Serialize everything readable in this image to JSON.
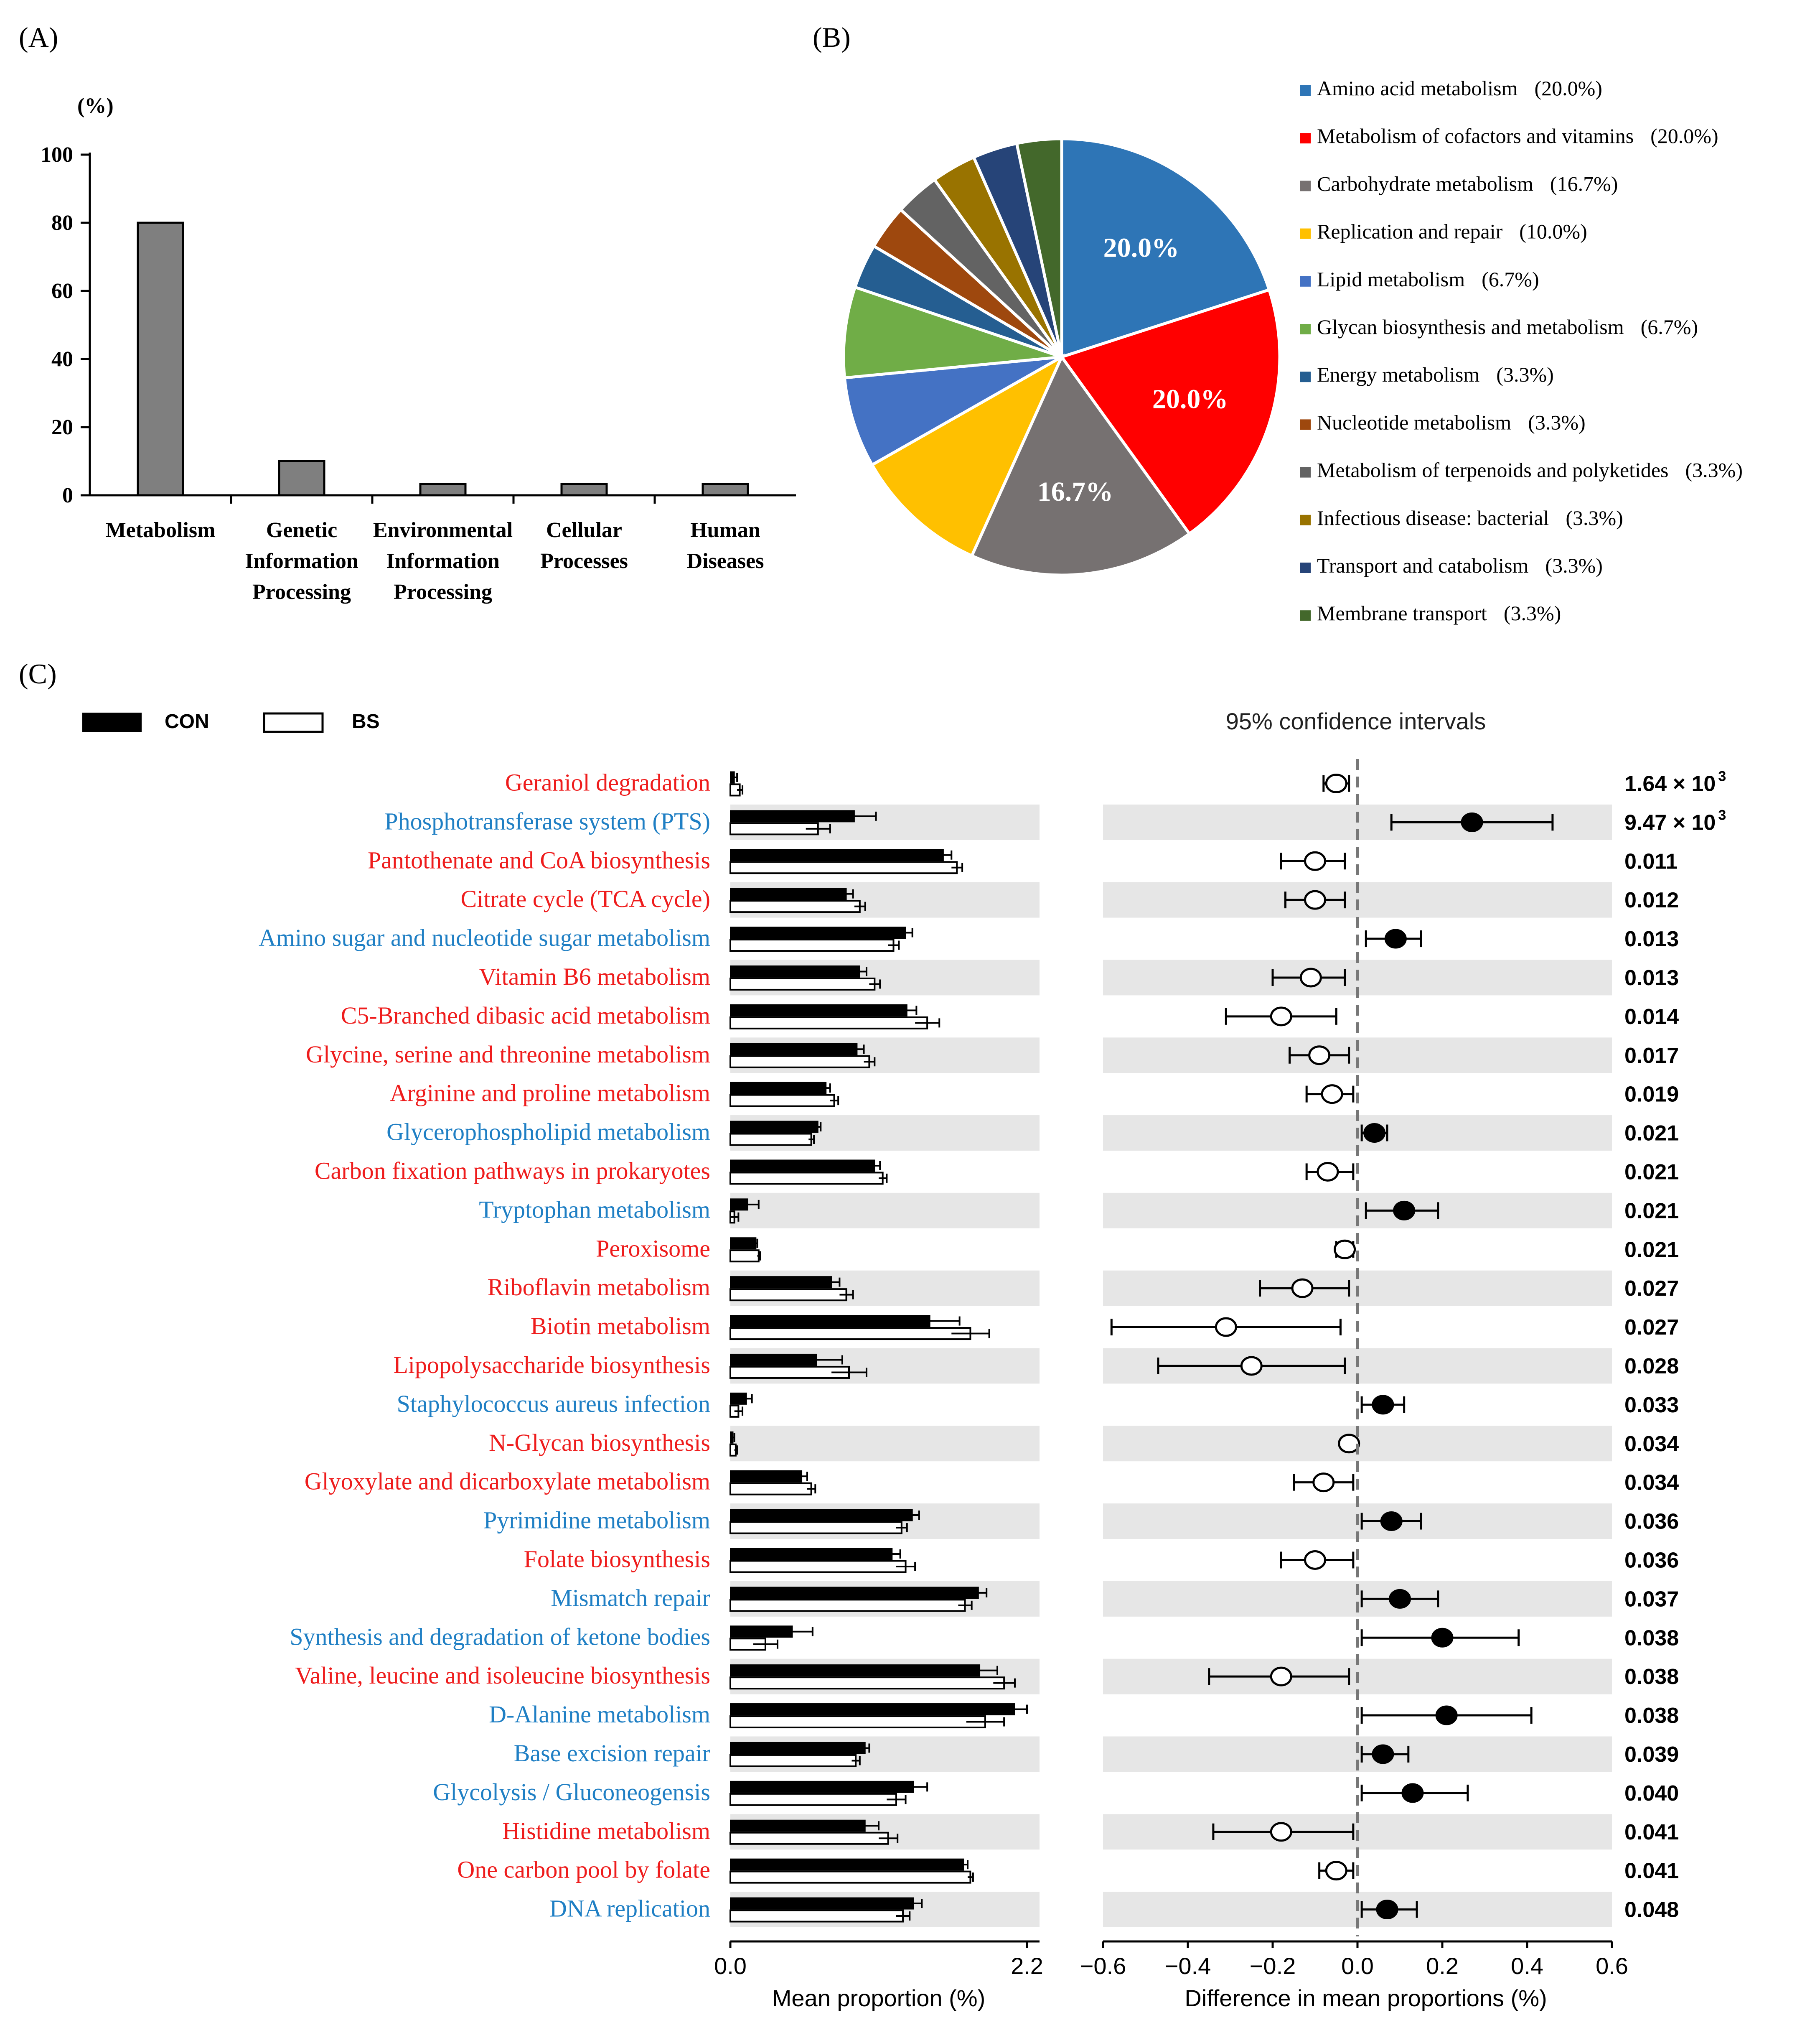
{
  "panels": {
    "a_label": "(A)",
    "b_label": "(B)",
    "c_label": "(C)"
  },
  "chart_data": [
    {
      "type": "bar",
      "panel": "A",
      "ylabel": "(%)",
      "ylim": [
        0,
        100
      ],
      "yticks": [
        "100",
        "80",
        "60",
        "40",
        "20",
        "0"
      ],
      "categories": [
        [
          "Metabolism"
        ],
        [
          "Genetic",
          "Information",
          "Processing"
        ],
        [
          "Environmental",
          "Information",
          "Processing"
        ],
        [
          "Cellular",
          "Processes"
        ],
        [
          "Human",
          "Diseases"
        ]
      ],
      "values": [
        80.0,
        10.0,
        3.3,
        3.3,
        3.3
      ],
      "bar_color": "#7f7f7f"
    },
    {
      "type": "pie",
      "panel": "B",
      "legend": "right",
      "slices": [
        {
          "label": "Amino acid metabolism",
          "pct": "(20.0%)",
          "value": 20.0,
          "color": "#2e75b6",
          "inside": "20.0%"
        },
        {
          "label": "Metabolism of cofactors and vitamins",
          "pct": "(20.0%)",
          "value": 20.0,
          "color": "#ff0000",
          "inside": "20.0%"
        },
        {
          "label": "Carbohydrate metabolism",
          "pct": "(16.7%)",
          "value": 16.7,
          "color": "#767171",
          "inside": "16.7%"
        },
        {
          "label": "Replication and repair",
          "pct": "(10.0%)",
          "value": 10.0,
          "color": "#ffc000",
          "inside": ""
        },
        {
          "label": "Lipid metabolism",
          "pct": "(6.7%)",
          "value": 6.7,
          "color": "#4472c4",
          "inside": ""
        },
        {
          "label": "Glycan biosynthesis and metabolism",
          "pct": "(6.7%)",
          "value": 6.7,
          "color": "#70ad47",
          "inside": ""
        },
        {
          "label": "Energy metabolism",
          "pct": "(3.3%)",
          "value": 3.3,
          "color": "#255e91",
          "inside": ""
        },
        {
          "label": "Nucleotide metabolism",
          "pct": "(3.3%)",
          "value": 3.3,
          "color": "#9e480e",
          "inside": ""
        },
        {
          "label": "Metabolism of terpenoids and polyketides",
          "pct": "(3.3%)",
          "value": 3.3,
          "color": "#636363",
          "inside": ""
        },
        {
          "label": "Infectious disease: bacterial",
          "pct": "(3.3%)",
          "value": 3.3,
          "color": "#997300",
          "inside": ""
        },
        {
          "label": "Transport and catabolism",
          "pct": "(3.3%)",
          "value": 3.3,
          "color": "#264478",
          "inside": ""
        },
        {
          "label": "Membrane transport",
          "pct": "(3.3%)",
          "value": 3.3,
          "color": "#43682b",
          "inside": ""
        }
      ]
    },
    {
      "type": "extended-error-bar",
      "panel": "C",
      "legend": {
        "con": "CON",
        "bs": "BS"
      },
      "ci_title": "95% confidence intervals",
      "left_xlabel": "Mean proportion (%)",
      "left_xlim": [
        0,
        2.2
      ],
      "left_ticks": [
        {
          "v": 0,
          "t": "0.0"
        },
        {
          "v": 2.2,
          "t": "2.2"
        }
      ],
      "right_xlabel": "Difference in mean proportions (%)",
      "right_xlim": [
        -0.6,
        0.6
      ],
      "right_ticks": [
        {
          "v": -0.6,
          "t": "−0.6"
        },
        {
          "v": -0.4,
          "t": "−0.4"
        },
        {
          "v": -0.2,
          "t": "−0.2"
        },
        {
          "v": 0,
          "t": "0.0"
        },
        {
          "v": 0.2,
          "t": "0.2"
        },
        {
          "v": 0.4,
          "t": "0.4"
        },
        {
          "v": 0.6,
          "t": "0.6"
        }
      ],
      "colors": {
        "red": "#ee1c1c",
        "blue": "#1f7fc4",
        "shade": "#e6e6e6"
      },
      "rows": [
        {
          "name": "Geraniol degradation",
          "color": "red",
          "con": 0.03,
          "con_e": 0.02,
          "bs": 0.07,
          "bs_e": 0.02,
          "diff": -0.05,
          "lo": -0.08,
          "hi": -0.02,
          "p": "1.64 × 10",
          "sup": "3"
        },
        {
          "name": "Phosphotransferase system (PTS)",
          "color": "blue",
          "con": 0.92,
          "con_e": 0.16,
          "bs": 0.65,
          "bs_e": 0.09,
          "diff": 0.27,
          "lo": 0.08,
          "hi": 0.46,
          "p": "9.47 × 10",
          "sup": "3"
        },
        {
          "name": "Pantothenate and CoA biosynthesis",
          "color": "red",
          "con": 1.58,
          "con_e": 0.06,
          "bs": 1.68,
          "bs_e": 0.04,
          "diff": -0.1,
          "lo": -0.18,
          "hi": -0.03,
          "p": "0.011",
          "sup": ""
        },
        {
          "name": "Citrate cycle (TCA cycle)",
          "color": "red",
          "con": 0.86,
          "con_e": 0.05,
          "bs": 0.96,
          "bs_e": 0.04,
          "diff": -0.1,
          "lo": -0.17,
          "hi": -0.03,
          "p": "0.012",
          "sup": ""
        },
        {
          "name": "Amino sugar and nucleotide sugar metabolism",
          "color": "blue",
          "con": 1.3,
          "con_e": 0.05,
          "bs": 1.21,
          "bs_e": 0.04,
          "diff": 0.09,
          "lo": 0.02,
          "hi": 0.15,
          "p": "0.013",
          "sup": ""
        },
        {
          "name": "Vitamin B6 metabolism",
          "color": "red",
          "con": 0.96,
          "con_e": 0.05,
          "bs": 1.07,
          "bs_e": 0.04,
          "diff": -0.11,
          "lo": -0.2,
          "hi": -0.03,
          "p": "0.013",
          "sup": ""
        },
        {
          "name": "C5-Branched dibasic acid metabolism",
          "color": "red",
          "con": 1.31,
          "con_e": 0.07,
          "bs": 1.46,
          "bs_e": 0.09,
          "diff": -0.18,
          "lo": -0.31,
          "hi": -0.05,
          "p": "0.014",
          "sup": ""
        },
        {
          "name": "Glycine, serine and threonine metabolism",
          "color": "red",
          "con": 0.94,
          "con_e": 0.05,
          "bs": 1.03,
          "bs_e": 0.04,
          "diff": -0.09,
          "lo": -0.16,
          "hi": -0.02,
          "p": "0.017",
          "sup": ""
        },
        {
          "name": "Arginine and proline metabolism",
          "color": "red",
          "con": 0.71,
          "con_e": 0.03,
          "bs": 0.77,
          "bs_e": 0.03,
          "diff": -0.06,
          "lo": -0.12,
          "hi": -0.01,
          "p": "0.019",
          "sup": ""
        },
        {
          "name": "Glycerophospholipid metabolism",
          "color": "blue",
          "con": 0.65,
          "con_e": 0.02,
          "bs": 0.6,
          "bs_e": 0.02,
          "diff": 0.04,
          "lo": 0.01,
          "hi": 0.07,
          "p": "0.021",
          "sup": ""
        },
        {
          "name": "Carbon fixation pathways in prokaryotes",
          "color": "red",
          "con": 1.07,
          "con_e": 0.04,
          "bs": 1.13,
          "bs_e": 0.03,
          "diff": -0.07,
          "lo": -0.12,
          "hi": -0.01,
          "p": "0.021",
          "sup": ""
        },
        {
          "name": "Tryptophan metabolism",
          "color": "blue",
          "con": 0.13,
          "con_e": 0.08,
          "bs": 0.03,
          "bs_e": 0.03,
          "diff": 0.11,
          "lo": 0.02,
          "hi": 0.19,
          "p": "0.021",
          "sup": ""
        },
        {
          "name": "Peroxisome",
          "color": "red",
          "con": 0.19,
          "con_e": 0.01,
          "bs": 0.21,
          "bs_e": 0.01,
          "diff": -0.03,
          "lo": -0.05,
          "hi": -0.01,
          "p": "0.021",
          "sup": ""
        },
        {
          "name": "Riboflavin metabolism",
          "color": "red",
          "con": 0.75,
          "con_e": 0.06,
          "bs": 0.86,
          "bs_e": 0.05,
          "diff": -0.13,
          "lo": -0.23,
          "hi": -0.02,
          "p": "0.027",
          "sup": ""
        },
        {
          "name": "Biotin metabolism",
          "color": "red",
          "con": 1.48,
          "con_e": 0.22,
          "bs": 1.78,
          "bs_e": 0.14,
          "diff": -0.31,
          "lo": -0.58,
          "hi": -0.04,
          "p": "0.027",
          "sup": ""
        },
        {
          "name": "Lipopolysaccharide biosynthesis",
          "color": "red",
          "con": 0.64,
          "con_e": 0.19,
          "bs": 0.88,
          "bs_e": 0.13,
          "diff": -0.25,
          "lo": -0.47,
          "hi": -0.03,
          "p": "0.028",
          "sup": ""
        },
        {
          "name": "Staphylococcus aureus infection",
          "color": "blue",
          "con": 0.12,
          "con_e": 0.04,
          "bs": 0.06,
          "bs_e": 0.03,
          "diff": 0.06,
          "lo": 0.01,
          "hi": 0.11,
          "p": "0.033",
          "sup": ""
        },
        {
          "name": "N-Glycan biosynthesis",
          "color": "red",
          "con": 0.02,
          "con_e": 0.01,
          "bs": 0.04,
          "bs_e": 0.01,
          "diff": -0.02,
          "lo": -0.03,
          "hi": -0.01,
          "p": "0.034",
          "sup": ""
        },
        {
          "name": "Glyoxylate and dicarboxylate metabolism",
          "color": "red",
          "con": 0.53,
          "con_e": 0.04,
          "bs": 0.6,
          "bs_e": 0.03,
          "diff": -0.08,
          "lo": -0.15,
          "hi": -0.01,
          "p": "0.034",
          "sup": ""
        },
        {
          "name": "Pyrimidine metabolism",
          "color": "blue",
          "con": 1.35,
          "con_e": 0.05,
          "bs": 1.27,
          "bs_e": 0.04,
          "diff": 0.08,
          "lo": 0.01,
          "hi": 0.15,
          "p": "0.036",
          "sup": ""
        },
        {
          "name": "Folate biosynthesis",
          "color": "red",
          "con": 1.2,
          "con_e": 0.06,
          "bs": 1.3,
          "bs_e": 0.07,
          "diff": -0.1,
          "lo": -0.18,
          "hi": -0.01,
          "p": "0.036",
          "sup": ""
        },
        {
          "name": "Mismatch repair",
          "color": "blue",
          "con": 1.84,
          "con_e": 0.06,
          "bs": 1.74,
          "bs_e": 0.05,
          "diff": 0.1,
          "lo": 0.01,
          "hi": 0.19,
          "p": "0.037",
          "sup": ""
        },
        {
          "name": "Synthesis and degradation of ketone bodies",
          "color": "blue",
          "con": 0.46,
          "con_e": 0.15,
          "bs": 0.26,
          "bs_e": 0.09,
          "diff": 0.2,
          "lo": 0.01,
          "hi": 0.38,
          "p": "0.038",
          "sup": ""
        },
        {
          "name": "Valine, leucine and isoleucine biosynthesis",
          "color": "red",
          "con": 1.85,
          "con_e": 0.13,
          "bs": 2.03,
          "bs_e": 0.08,
          "diff": -0.18,
          "lo": -0.35,
          "hi": -0.02,
          "p": "0.038",
          "sup": ""
        },
        {
          "name": "D-Alanine metabolism",
          "color": "blue",
          "con": 2.11,
          "con_e": 0.09,
          "bs": 1.89,
          "bs_e": 0.14,
          "diff": 0.21,
          "lo": 0.01,
          "hi": 0.41,
          "p": "0.038",
          "sup": ""
        },
        {
          "name": "Base excision repair",
          "color": "blue",
          "con": 1.0,
          "con_e": 0.03,
          "bs": 0.93,
          "bs_e": 0.03,
          "diff": 0.06,
          "lo": 0.01,
          "hi": 0.12,
          "p": "0.039",
          "sup": ""
        },
        {
          "name": "Glycolysis / Gluconeogensis",
          "color": "blue",
          "con": 1.36,
          "con_e": 0.1,
          "bs": 1.23,
          "bs_e": 0.07,
          "diff": 0.13,
          "lo": 0.01,
          "hi": 0.26,
          "p": "0.040",
          "sup": ""
        },
        {
          "name": "Histidine metabolism",
          "color": "red",
          "con": 1.0,
          "con_e": 0.1,
          "bs": 1.17,
          "bs_e": 0.07,
          "diff": -0.18,
          "lo": -0.34,
          "hi": -0.01,
          "p": "0.041",
          "sup": ""
        },
        {
          "name": "One carbon pool by folate",
          "color": "red",
          "con": 1.73,
          "con_e": 0.03,
          "bs": 1.78,
          "bs_e": 0.02,
          "diff": -0.05,
          "lo": -0.09,
          "hi": -0.01,
          "p": "0.041",
          "sup": ""
        },
        {
          "name": "DNA replication",
          "color": "blue",
          "con": 1.36,
          "con_e": 0.06,
          "bs": 1.28,
          "bs_e": 0.05,
          "diff": 0.07,
          "lo": 0.01,
          "hi": 0.14,
          "p": "0.048",
          "sup": ""
        }
      ]
    }
  ]
}
